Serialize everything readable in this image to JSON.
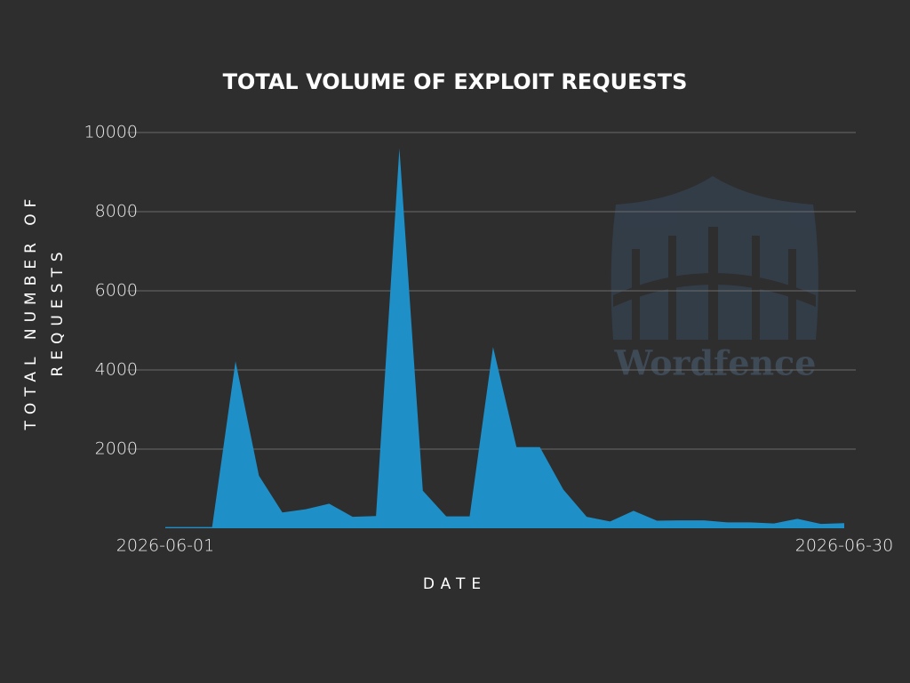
{
  "chart_data": {
    "type": "area",
    "title": "TOTAL VOLUME OF EXPLOIT REQUESTS",
    "x_label": "DATE",
    "y_label": "TOTAL NUMBER OF REQUESTS",
    "watermark": "Wordfence",
    "categories": [
      "2026-06-01",
      null,
      null,
      null,
      null,
      null,
      null,
      null,
      null,
      null,
      null,
      null,
      null,
      null,
      null,
      null,
      null,
      null,
      null,
      null,
      null,
      null,
      null,
      null,
      null,
      null,
      null,
      null,
      null,
      "2026-06-30"
    ],
    "values": [
      30,
      30,
      30,
      4220,
      1330,
      400,
      480,
      620,
      290,
      310,
      9600,
      950,
      300,
      300,
      4580,
      2050,
      2050,
      980,
      290,
      170,
      440,
      190,
      200,
      200,
      150,
      150,
      120,
      240,
      110,
      130
    ],
    "color": "#1f8fc8",
    "ylim": [
      0,
      10000
    ],
    "yticks": [
      2000,
      4000,
      6000,
      8000,
      10000
    ],
    "grid": true
  }
}
